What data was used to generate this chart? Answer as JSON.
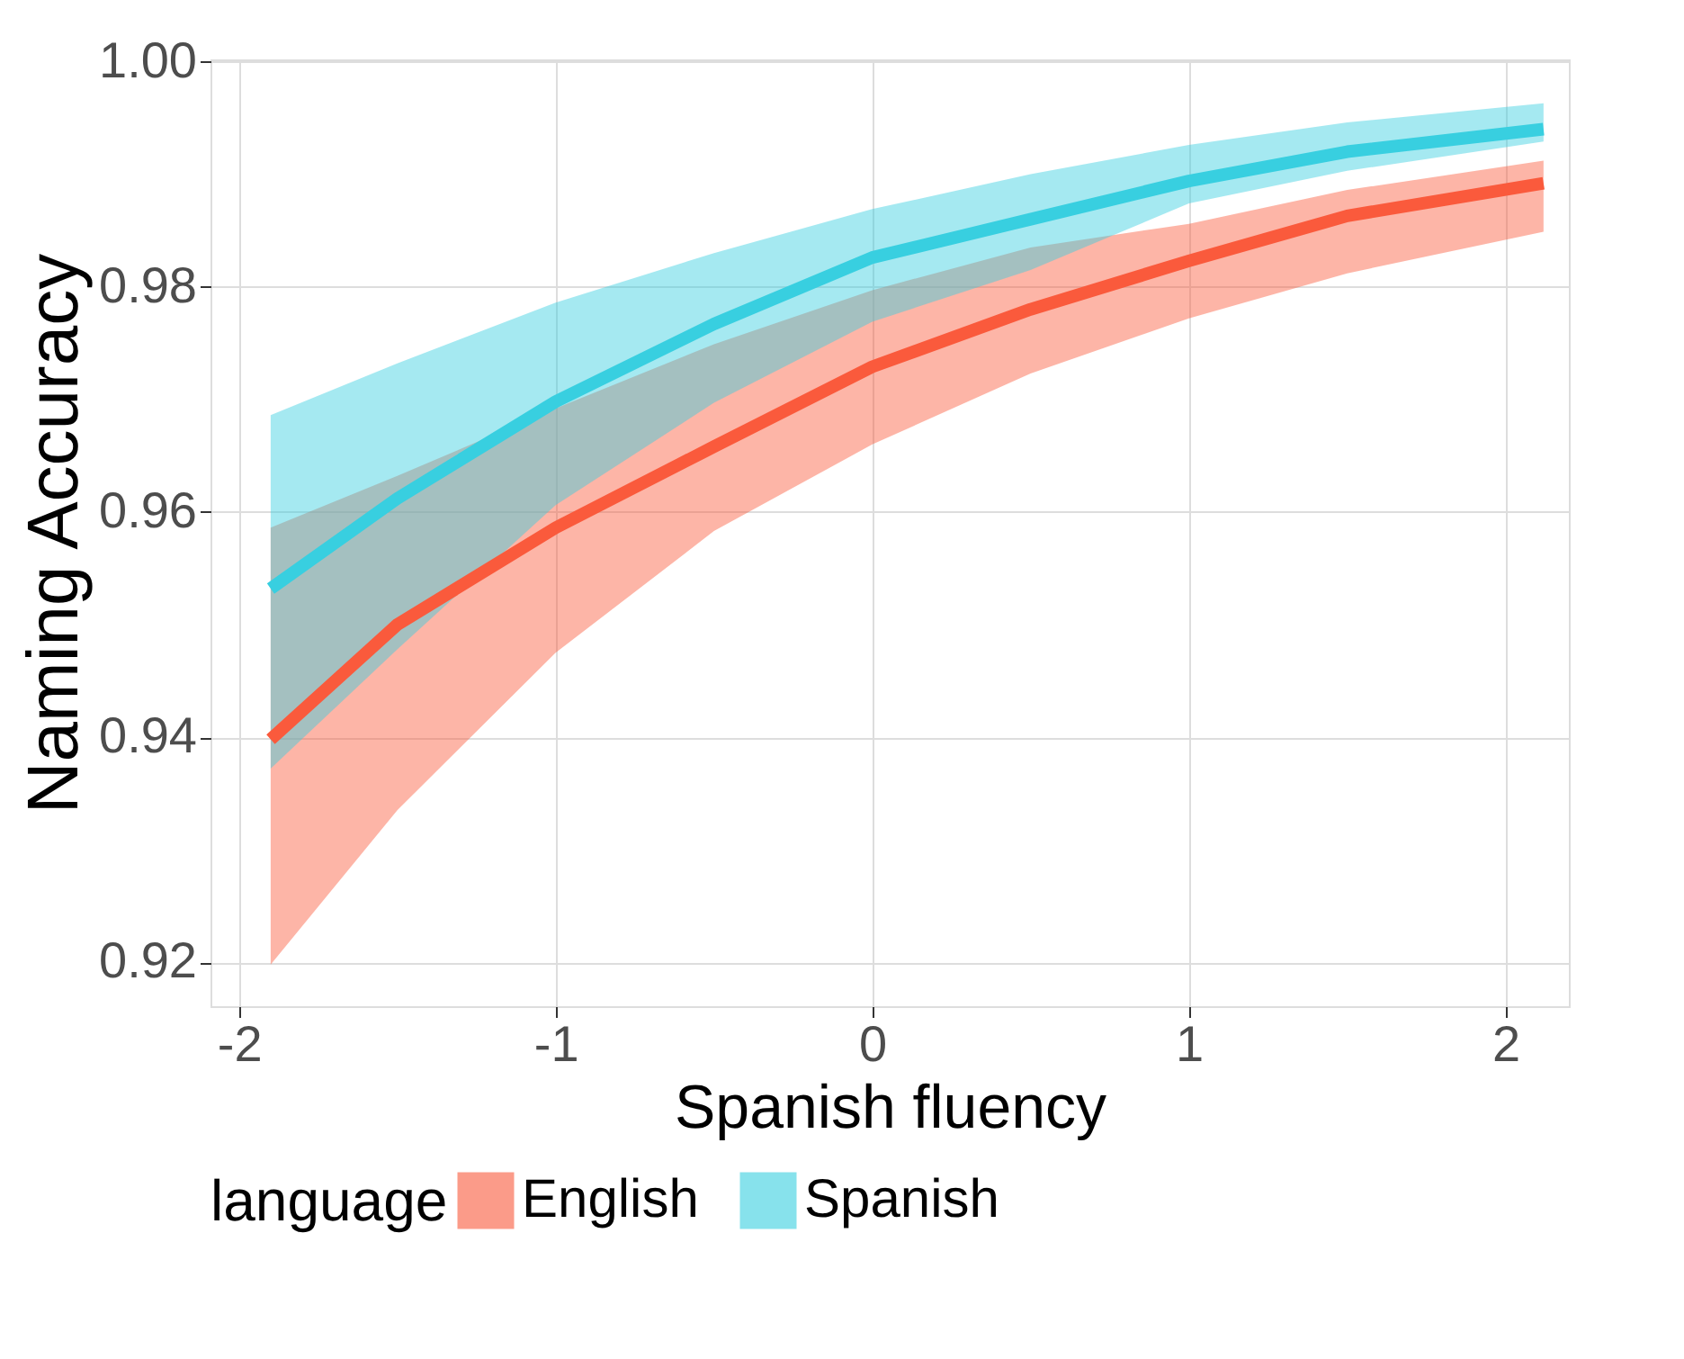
{
  "chart_data": {
    "type": "line",
    "xlabel": "Spanish fluency",
    "ylabel": "Naming Accuracy",
    "legend_title": "language",
    "legend": "bottom",
    "grid": true,
    "line_style": "solid",
    "marker": "none",
    "x": [
      -1.9,
      -1.5,
      -1,
      -0.5,
      0,
      0.5,
      1,
      1.5,
      2.12
    ],
    "xlim": [
      -2.09,
      2.2
    ],
    "xticks": [
      -2,
      -1,
      0,
      1,
      2
    ],
    "ylim": [
      0.9161,
      1.0002
    ],
    "yticks": [
      0.92,
      0.94,
      0.96,
      0.98,
      {
        "value": 1.0,
        "label": "1.00"
      }
    ],
    "series": [
      {
        "name": "English",
        "color": "#fa5a3c",
        "values": [
          0.9398,
          0.95,
          0.9586,
          0.9658,
          0.9729,
          0.978,
          0.9823,
          0.9863,
          0.9892
        ],
        "lower": [
          0.9198,
          0.9335,
          0.9475,
          0.9583,
          0.966,
          0.9723,
          0.9772,
          0.9812,
          0.9849
        ],
        "upper": [
          0.9586,
          0.9632,
          0.9692,
          0.9749,
          0.9797,
          0.9835,
          0.9856,
          0.9886,
          0.9912
        ]
      },
      {
        "name": "Spanish",
        "color": "#38cfe0",
        "values": [
          0.9532,
          0.9612,
          0.9698,
          0.9767,
          0.9826,
          0.986,
          0.9894,
          0.992,
          0.994
        ],
        "lower": [
          0.9372,
          0.9478,
          0.9606,
          0.9697,
          0.9769,
          0.9815,
          0.9874,
          0.9903,
          0.9929
        ],
        "upper": [
          0.9686,
          0.9732,
          0.9786,
          0.983,
          0.9869,
          0.99,
          0.9926,
          0.9946,
          0.9963
        ]
      }
    ]
  }
}
